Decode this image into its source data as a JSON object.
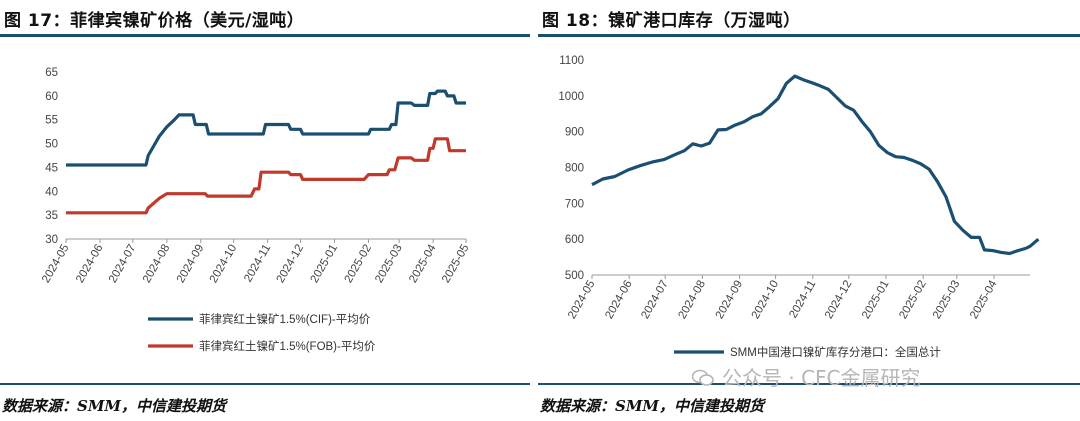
{
  "left": {
    "title": "图 17：菲律宾镍矿价格（美元/湿吨）",
    "source": "数据来源：SMM，中信建投期货",
    "chart_data": {
      "type": "line",
      "y_ticks": [
        30,
        35,
        40,
        45,
        50,
        55,
        60,
        65
      ],
      "ylim": [
        30,
        65
      ],
      "x_ticks": [
        "2024-05",
        "2024-06",
        "2024-07",
        "2024-08",
        "2024-09",
        "2024-10",
        "2024-11",
        "2024-12",
        "2025-01",
        "2025-02",
        "2025-03",
        "2025-04",
        "2025-05"
      ],
      "xlim": [
        "2024-05-01",
        "2025-05-01"
      ],
      "series": [
        {
          "name": "菲律宾红土镍矿1.5%(CIF)-平均价",
          "color": "#1b4f72",
          "points": [
            [
              "2024-05-01",
              45.5
            ],
            [
              "2024-07-13",
              45.5
            ],
            [
              "2024-07-15",
              47.5
            ],
            [
              "2024-07-20",
              49.5
            ],
            [
              "2024-07-25",
              51.5
            ],
            [
              "2024-08-01",
              53.5
            ],
            [
              "2024-08-08",
              55.0
            ],
            [
              "2024-08-12",
              56.0
            ],
            [
              "2024-08-25",
              56.0
            ],
            [
              "2024-08-27",
              54.0
            ],
            [
              "2024-09-06",
              54.0
            ],
            [
              "2024-09-08",
              52.0
            ],
            [
              "2024-10-28",
              52.0
            ],
            [
              "2024-10-30",
              54.0
            ],
            [
              "2024-11-20",
              54.0
            ],
            [
              "2024-11-22",
              53.0
            ],
            [
              "2024-12-01",
              53.0
            ],
            [
              "2024-12-03",
              52.0
            ],
            [
              "2025-02-01",
              52.0
            ],
            [
              "2025-02-03",
              53.0
            ],
            [
              "2025-02-20",
              53.0
            ],
            [
              "2025-02-22",
              54.0
            ],
            [
              "2025-02-26",
              54.0
            ],
            [
              "2025-02-28",
              58.5
            ],
            [
              "2025-03-12",
              58.5
            ],
            [
              "2025-03-15",
              58.0
            ],
            [
              "2025-03-27",
              58.0
            ],
            [
              "2025-03-29",
              60.5
            ],
            [
              "2025-04-03",
              60.5
            ],
            [
              "2025-04-05",
              61.0
            ],
            [
              "2025-04-12",
              61.0
            ],
            [
              "2025-04-14",
              60.0
            ],
            [
              "2025-04-20",
              60.0
            ],
            [
              "2025-04-22",
              58.5
            ],
            [
              "2025-05-01",
              58.5
            ]
          ]
        },
        {
          "name": "菲律宾红土镍矿1.5%(FOB)-平均价",
          "color": "#c0392b",
          "points": [
            [
              "2024-05-01",
              35.5
            ],
            [
              "2024-07-13",
              35.5
            ],
            [
              "2024-07-15",
              36.5
            ],
            [
              "2024-07-20",
              37.5
            ],
            [
              "2024-07-25",
              38.5
            ],
            [
              "2024-08-01",
              39.5
            ],
            [
              "2024-09-05",
              39.5
            ],
            [
              "2024-09-07",
              39.0
            ],
            [
              "2024-10-17",
              39.0
            ],
            [
              "2024-10-20",
              40.5
            ],
            [
              "2024-10-24",
              40.5
            ],
            [
              "2024-10-26",
              44.0
            ],
            [
              "2024-11-20",
              44.0
            ],
            [
              "2024-11-22",
              43.5
            ],
            [
              "2024-12-01",
              43.5
            ],
            [
              "2024-12-03",
              42.5
            ],
            [
              "2025-01-28",
              42.5
            ],
            [
              "2025-02-01",
              43.5
            ],
            [
              "2025-02-18",
              43.5
            ],
            [
              "2025-02-20",
              44.5
            ],
            [
              "2025-02-25",
              44.5
            ],
            [
              "2025-02-28",
              47.0
            ],
            [
              "2025-03-12",
              47.0
            ],
            [
              "2025-03-15",
              46.5
            ],
            [
              "2025-03-27",
              46.5
            ],
            [
              "2025-03-29",
              49.0
            ],
            [
              "2025-04-01",
              49.0
            ],
            [
              "2025-04-03",
              51.0
            ],
            [
              "2025-04-14",
              51.0
            ],
            [
              "2025-04-16",
              48.5
            ],
            [
              "2025-05-01",
              48.5
            ]
          ]
        }
      ]
    }
  },
  "right": {
    "title": "图 18：镍矿港口库存（万湿吨）",
    "source": "数据来源：SMM，中信建投期货",
    "chart_data": {
      "type": "line",
      "y_ticks": [
        500,
        600,
        700,
        800,
        900,
        1000,
        1100
      ],
      "ylim": [
        500,
        1100
      ],
      "x_ticks": [
        "2024-05",
        "2024-06",
        "2024-07",
        "2024-08",
        "2024-09",
        "2024-10",
        "2024-11",
        "2024-12",
        "2025-01",
        "2025-02",
        "2025-03",
        "2025-04"
      ],
      "xlim": [
        "2024-05-01",
        "2025-05-01"
      ],
      "series": [
        {
          "name": "SMM中国港口镍矿库存分港口：全国总计",
          "color": "#1b4f72",
          "points": [
            [
              "2024-05-01",
              752
            ],
            [
              "2024-05-10",
              768
            ],
            [
              "2024-05-20",
              775
            ],
            [
              "2024-05-31",
              793
            ],
            [
              "2024-06-10",
              805
            ],
            [
              "2024-06-20",
              815
            ],
            [
              "2024-06-30",
              822
            ],
            [
              "2024-07-10",
              837
            ],
            [
              "2024-07-17",
              847
            ],
            [
              "2024-07-24",
              866
            ],
            [
              "2024-07-31",
              860
            ],
            [
              "2024-08-07",
              868
            ],
            [
              "2024-08-14",
              905
            ],
            [
              "2024-08-21",
              906
            ],
            [
              "2024-08-28",
              918
            ],
            [
              "2024-09-05",
              928
            ],
            [
              "2024-09-12",
              942
            ],
            [
              "2024-09-19",
              950
            ],
            [
              "2024-09-26",
              970
            ],
            [
              "2024-10-03",
              992
            ],
            [
              "2024-10-10",
              1035
            ],
            [
              "2024-10-17",
              1055
            ],
            [
              "2024-10-24",
              1045
            ],
            [
              "2024-10-31",
              1037
            ],
            [
              "2024-11-07",
              1028
            ],
            [
              "2024-11-14",
              1018
            ],
            [
              "2024-11-21",
              995
            ],
            [
              "2024-11-28",
              972
            ],
            [
              "2024-12-05",
              960
            ],
            [
              "2024-12-12",
              928
            ],
            [
              "2024-12-19",
              900
            ],
            [
              "2024-12-26",
              862
            ],
            [
              "2025-01-02",
              842
            ],
            [
              "2025-01-09",
              830
            ],
            [
              "2025-01-16",
              828
            ],
            [
              "2025-01-23",
              820
            ],
            [
              "2025-01-30",
              810
            ],
            [
              "2025-02-06",
              795
            ],
            [
              "2025-02-13",
              760
            ],
            [
              "2025-02-20",
              718
            ],
            [
              "2025-02-27",
              650
            ],
            [
              "2025-03-06",
              625
            ],
            [
              "2025-03-13",
              605
            ],
            [
              "2025-03-20",
              605
            ],
            [
              "2025-03-24",
              570
            ],
            [
              "2025-03-31",
              568
            ],
            [
              "2025-04-07",
              563
            ],
            [
              "2025-04-14",
              560
            ],
            [
              "2025-04-21",
              568
            ],
            [
              "2025-04-28",
              575
            ],
            [
              "2025-05-01",
              580
            ],
            [
              "2025-05-08",
              600
            ]
          ]
        }
      ]
    }
  },
  "watermark": "公众号 · CFC金属研究"
}
